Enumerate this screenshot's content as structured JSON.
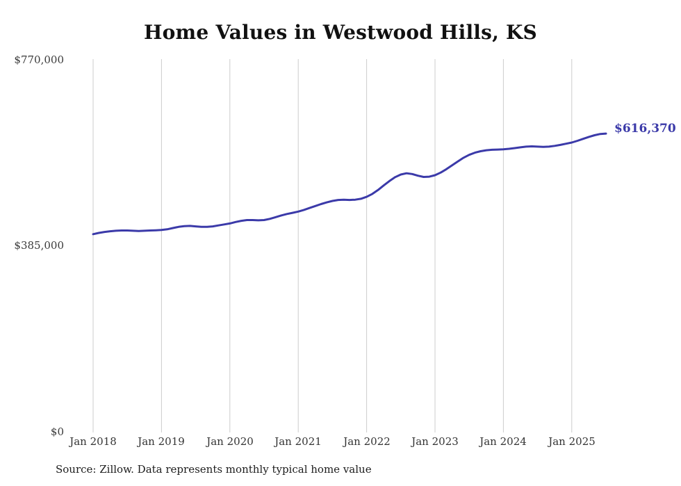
{
  "title": "Home Values in Westwood Hills, KS",
  "source_note": "Source: Zillow. Data represents monthly typical home value",
  "end_label": "$616,370",
  "colors": {
    "line": "#3b3aa9",
    "grid": "#cccccc",
    "title_text": "#111111",
    "axis_text": "#333333"
  },
  "chart_data": {
    "type": "line",
    "title": "Home Values in Westwood Hills, KS",
    "xlabel": "",
    "ylabel": "",
    "ylim": [
      0,
      770000
    ],
    "grid": "vertical-only",
    "legend": "none",
    "x_start": "2018-01",
    "x_end": "2025-07",
    "frequency": "monthly",
    "yticks": [
      {
        "label": "$770,000",
        "value": 770000
      },
      {
        "label": "$385,000",
        "value": 385000
      },
      {
        "label": "$0",
        "value": 0
      }
    ],
    "xticks": [
      "Jan 2018",
      "Jan 2019",
      "Jan 2020",
      "Jan 2021",
      "Jan 2022",
      "Jan 2023",
      "Jan 2024",
      "Jan 2025"
    ],
    "end_value": 616370,
    "series": [
      {
        "name": "Typical home value",
        "values": [
          409000,
          411500,
          413500,
          415000,
          416000,
          416500,
          416500,
          416000,
          415500,
          416000,
          416500,
          417000,
          417500,
          419000,
          421500,
          424000,
          425500,
          426000,
          425000,
          424000,
          424000,
          425000,
          427000,
          429000,
          431000,
          434000,
          436500,
          438000,
          438000,
          437500,
          438000,
          440500,
          444000,
          447500,
          450500,
          453000,
          455500,
          459000,
          463000,
          467000,
          471000,
          474500,
          477500,
          479500,
          480000,
          479500,
          480000,
          482000,
          486000,
          492000,
          500000,
          509500,
          518500,
          526500,
          532000,
          534500,
          533000,
          529500,
          527000,
          527500,
          530500,
          536000,
          543000,
          551000,
          559000,
          566500,
          572500,
          577000,
          580000,
          582000,
          583000,
          583500,
          584000,
          585000,
          586500,
          588000,
          589500,
          590000,
          589500,
          589000,
          589500,
          591000,
          593000,
          595500,
          598000,
          601500,
          605500,
          609500,
          613000,
          615500,
          616370
        ]
      }
    ]
  }
}
